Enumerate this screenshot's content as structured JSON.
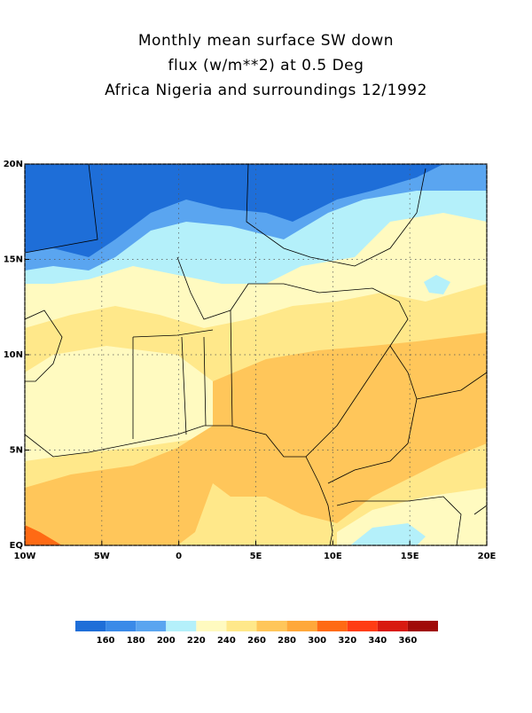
{
  "title": [
    "Monthly mean surface SW down",
    "flux (w/m**2) at 0.5 Deg",
    "Africa Nigeria and surroundings 12/1992"
  ],
  "map": {
    "xlim": [
      -10,
      20
    ],
    "ylim": [
      0,
      20
    ],
    "grid": true,
    "xticks": [
      {
        "value": -10,
        "label": "10W"
      },
      {
        "value": -5,
        "label": "5W"
      },
      0,
      {
        "value": 5,
        "label": "5E"
      },
      {
        "value": 10,
        "label": "10E"
      },
      {
        "value": 15,
        "label": "15E"
      },
      {
        "value": 20,
        "label": "20E"
      }
    ],
    "yticks": [
      {
        "value": 0,
        "label": "EQ"
      },
      {
        "value": 5,
        "label": "5N"
      },
      {
        "value": 10,
        "label": "10N"
      },
      {
        "value": 15,
        "label": "15N"
      },
      {
        "value": 20,
        "label": "20N"
      }
    ]
  },
  "colorbar": {
    "colors": [
      "#1e6ed8",
      "#3a8ae8",
      "#5aa5f0",
      "#b4f0fa",
      "#fffac0",
      "#ffe88a",
      "#ffc65a",
      "#ffa83a",
      "#ff6a14",
      "#ff3c14",
      "#d81a10",
      "#a00a08"
    ],
    "labels": [
      160,
      180,
      200,
      220,
      240,
      260,
      280,
      300,
      320,
      340,
      360
    ]
  }
}
